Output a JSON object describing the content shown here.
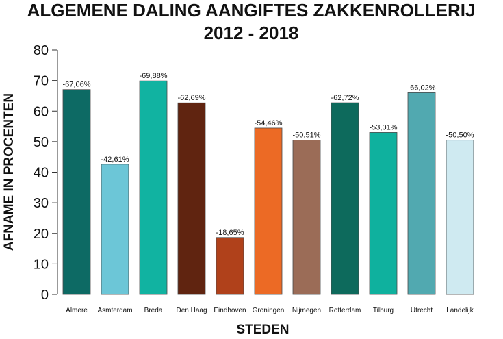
{
  "chart_data": {
    "type": "bar",
    "title_line1": "ALGEMENE DALING AANGIFTES ZAKKENROLLERIJ",
    "title_line2": "2012 - 2018",
    "xlabel": "STEDEN",
    "ylabel": "AFNAME IN PROCENTEN",
    "ylim": [
      0,
      80
    ],
    "yticks": [
      0,
      10,
      20,
      30,
      40,
      50,
      60,
      70,
      80
    ],
    "categories": [
      "Almere",
      "Asmterdam",
      "Breda",
      "Den Haag",
      "Eindhoven",
      "Groningen",
      "Nijmegen",
      "Rotterdam",
      "Tilburg",
      "Utrecht",
      "Landelijk"
    ],
    "values": [
      67.06,
      42.61,
      69.88,
      62.69,
      18.65,
      54.46,
      50.51,
      62.72,
      53.01,
      66.02,
      50.5
    ],
    "data_labels": [
      "-67,06%",
      "-42,61%",
      "-69,88%",
      "-62,69%",
      "-18,65%",
      "-54,46%",
      "-50,51%",
      "-62,72%",
      "-53,01%",
      "-66,02%",
      "-50,50%"
    ],
    "colors": [
      "#0d6a64",
      "#6cc6d7",
      "#11b3a1",
      "#602410",
      "#b0411b",
      "#ec6a25",
      "#9b6c57",
      "#0d6a5c",
      "#0fb19e",
      "#51a9b0",
      "#cfeaf1"
    ],
    "grid": false,
    "legend": "none"
  }
}
